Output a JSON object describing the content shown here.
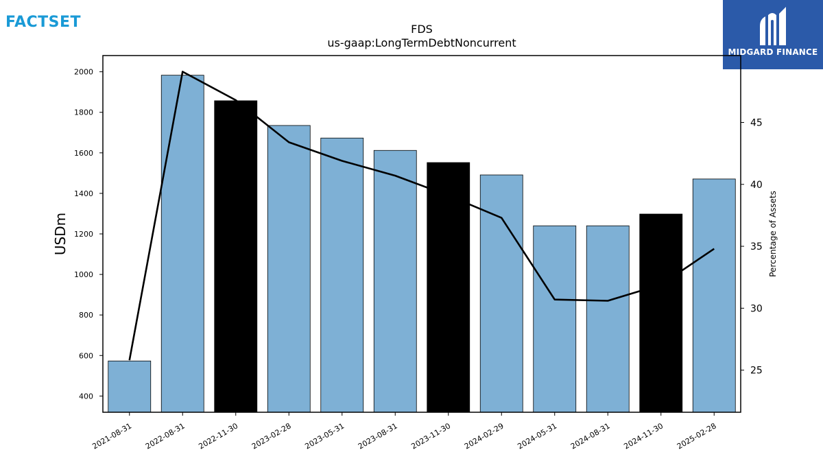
{
  "branding": {
    "factset_logo_text": "FACTSET",
    "factset_color": "#1a9ad6",
    "midgard_name": "MIDGARD FINANCE",
    "midgard_bg": "#2b5aa9"
  },
  "chart_data": {
    "type": "bar",
    "title": "FDS",
    "subtitle": "us-gaap:LongTermDebtNoncurrent",
    "ylabel": "USDm",
    "y2label": "Percentage of Assets",
    "ylim": [
      320,
      2080
    ],
    "y2lim": [
      21.6,
      50.4
    ],
    "yticks": [
      400,
      600,
      800,
      1000,
      1200,
      1400,
      1600,
      1800,
      2000
    ],
    "y2ticks": [
      25,
      30,
      35,
      40,
      45
    ],
    "categories": [
      "2021-08-31",
      "2022-08-31",
      "2022-11-30",
      "2023-02-28",
      "2023-05-31",
      "2023-08-31",
      "2023-11-30",
      "2024-02-29",
      "2024-05-31",
      "2024-08-31",
      "2024-11-30",
      "2025-02-28"
    ],
    "series": [
      {
        "type": "bar",
        "values": [
          573,
          1983,
          1857,
          1735,
          1673,
          1612,
          1552,
          1491,
          1240,
          1240,
          1298,
          1471
        ],
        "highlight": [
          false,
          false,
          true,
          false,
          false,
          false,
          true,
          false,
          false,
          false,
          true,
          false
        ],
        "color": "#7eb0d5",
        "highlight_color": "#000000"
      },
      {
        "type": "line",
        "axis": "secondary",
        "values": [
          25.8,
          49.1,
          46.8,
          43.4,
          41.9,
          40.7,
          39.1,
          37.3,
          30.7,
          30.6,
          31.9,
          34.8
        ],
        "color": "#000000"
      }
    ]
  }
}
